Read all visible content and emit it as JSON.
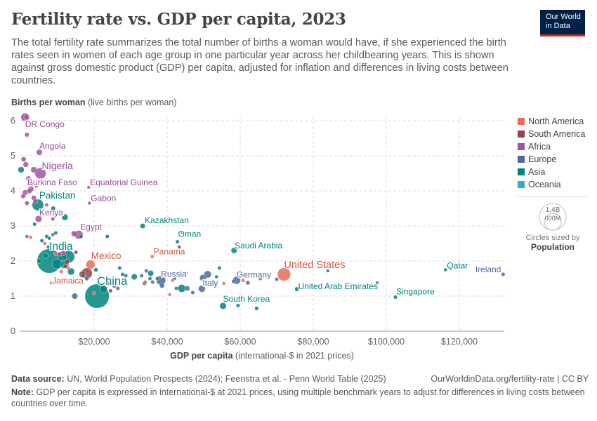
{
  "header": {
    "title": "Fertility rate vs. GDP per capita, 2023",
    "subtitle": "The total fertility rate summarizes the total number of births a woman would have, if she experienced the birth rates seen in women of each age group in one particular year across her childbearing years. This is shown against gross domestic product (GDP) per capita, adjusted for inflation and differences in living costs between countries.",
    "logo": "Our World in Data",
    "logo_line1": "Our World",
    "logo_line2": "in Data"
  },
  "footer": {
    "source_label": "Data source:",
    "source_text": "UN, World Population Prospects (2024); Feenstra et al. - Penn World Table (2025)",
    "url": "OurWorldinData.org/fertility-rate | CC BY",
    "note_label": "Note:",
    "note_text": "GDP per capita is expressed in international-$ at 2021 prices, using multiple benchmark years to adjust for differences in living costs between countries over time."
  },
  "chart_data": {
    "type": "scatter",
    "title": "Fertility rate vs. GDP per capita, 2023",
    "ylabel_bold": "Births per woman",
    "ylabel_rest": "(live births per woman)",
    "xlabel_bold": "GDP per capita",
    "xlabel_rest": "(international-$ in 2021 prices)",
    "xlim": [
      0,
      132500
    ],
    "ylim": [
      0,
      6.2
    ],
    "x_ticks": [
      20000,
      40000,
      60000,
      80000,
      100000,
      120000
    ],
    "x_tick_labels": [
      "$20,000",
      "$40,000",
      "$60,000",
      "$80,000",
      "$100,000",
      "$120,000"
    ],
    "y_ticks": [
      0,
      1,
      2,
      3,
      4,
      5,
      6
    ],
    "y_tick_labels": [
      "0",
      "1",
      "2",
      "3",
      "4",
      "5",
      "6"
    ],
    "grid": true,
    "legend_placement": "right",
    "regions": [
      {
        "name": "North America",
        "color": "#E56E5A",
        "text": "#D0533E"
      },
      {
        "name": "South America",
        "color": "#9A3F4C",
        "text": "#883040"
      },
      {
        "name": "Africa",
        "color": "#A2559C",
        "text": "#9A4B95"
      },
      {
        "name": "Europe",
        "color": "#4C6A9C",
        "text": "#4C6A9C"
      },
      {
        "name": "Asia",
        "color": "#00847E",
        "text": "#00847E"
      },
      {
        "name": "Oceania",
        "color": "#38AABA",
        "text": "#2A98A8"
      }
    ],
    "size_legend": {
      "title": "Circles sized by",
      "variable": "Population",
      "large": "1.4B",
      "small": "600M"
    },
    "points": [
      {
        "label": "DR Congo",
        "gdp": 1100,
        "fertility": 6.1,
        "region": "Africa",
        "population_millions": 105
      },
      {
        "label": "Angola",
        "gdp": 5000,
        "fertility": 5.1,
        "region": "Africa",
        "population_millions": 37
      },
      {
        "label": "Nigeria",
        "gdp": 5300,
        "fertility": 4.5,
        "region": "Africa",
        "population_millions": 228
      },
      {
        "label": "Burkina Faso",
        "gdp": 2300,
        "fertility": 4.0,
        "region": "Africa",
        "population_millions": 23
      },
      {
        "label": "Pakistan",
        "gdp": 4600,
        "fertility": 3.6,
        "region": "Asia",
        "population_millions": 245
      },
      {
        "label": "Kenya",
        "gdp": 4800,
        "fertility": 3.2,
        "region": "Africa",
        "population_millions": 55
      },
      {
        "label": "Equatorial Guinea",
        "gdp": 18500,
        "fertility": 4.1,
        "region": "Africa",
        "population_millions": 2
      },
      {
        "label": "Gabon",
        "gdp": 18700,
        "fertility": 3.65,
        "region": "Africa",
        "population_millions": 2.5
      },
      {
        "label": "Egypt",
        "gdp": 15800,
        "fertility": 2.75,
        "region": "Africa",
        "population_millions": 113
      },
      {
        "label": "Kazakhstan",
        "gdp": 33300,
        "fertility": 3.0,
        "region": "Asia",
        "population_millions": 20
      },
      {
        "label": "Oman",
        "gdp": 42800,
        "fertility": 2.55,
        "region": "Asia",
        "population_millions": 5
      },
      {
        "label": "Panama",
        "gdp": 35900,
        "fertility": 2.13,
        "region": "North America",
        "population_millions": 4.5
      },
      {
        "label": "India",
        "gdp": 7700,
        "fertility": 2.0,
        "region": "Asia",
        "population_millions": 1430
      },
      {
        "label": "Mexico",
        "gdp": 19000,
        "fertility": 1.9,
        "region": "North America",
        "population_millions": 128
      },
      {
        "label": "Jamaica",
        "gdp": 8300,
        "fertility": 1.38,
        "region": "North America",
        "population_millions": 3
      },
      {
        "label": "China",
        "gdp": 20800,
        "fertility": 1.0,
        "region": "Asia",
        "population_millions": 1420
      },
      {
        "label": "Russia",
        "gdp": 38300,
        "fertility": 1.45,
        "region": "Europe",
        "population_millions": 145
      },
      {
        "label": "Italy",
        "gdp": 49500,
        "fertility": 1.21,
        "region": "Europe",
        "population_millions": 59
      },
      {
        "label": "Germany",
        "gdp": 59000,
        "fertility": 1.45,
        "region": "Europe",
        "population_millions": 84
      },
      {
        "label": "Saudi Arabia",
        "gdp": 58300,
        "fertility": 2.3,
        "region": "Asia",
        "population_millions": 33
      },
      {
        "label": "South Korea",
        "gdp": 55300,
        "fertility": 0.72,
        "region": "Asia",
        "population_millions": 52
      },
      {
        "label": "United States",
        "gdp": 72000,
        "fertility": 1.62,
        "region": "North America",
        "population_millions": 340
      },
      {
        "label": "United Arab Emirates",
        "gdp": 75500,
        "fertility": 1.2,
        "region": "Asia",
        "population_millions": 10
      },
      {
        "label": "Qatar",
        "gdp": 116200,
        "fertility": 1.75,
        "region": "Asia",
        "population_millions": 2.7
      },
      {
        "label": "Ireland",
        "gdp": 132000,
        "fertility": 1.62,
        "region": "Europe",
        "population_millions": 5
      },
      {
        "label": "Singapore",
        "gdp": 102500,
        "fertility": 0.97,
        "region": "Asia",
        "population_millions": 6
      },
      {
        "gdp": 1500,
        "fertility": 6.1,
        "region": "Africa",
        "population_millions": 25
      },
      {
        "gdp": 1600,
        "fertility": 5.6,
        "region": "Africa",
        "population_millions": 12
      },
      {
        "gdp": 700,
        "fertility": 4.9,
        "region": "Africa",
        "population_millions": 18
      },
      {
        "gdp": 1300,
        "fertility": 4.75,
        "region": "Africa",
        "population_millions": 25
      },
      {
        "gdp": 3500,
        "fertility": 4.6,
        "region": "Africa",
        "population_millions": 40
      },
      {
        "gdp": 0,
        "fertility": 4.6,
        "region": "Asia",
        "population_millions": 40
      },
      {
        "gdp": 2000,
        "fertility": 4.35,
        "region": "Africa",
        "population_millions": 20
      },
      {
        "gdp": 3000,
        "fertility": 4.2,
        "region": "Africa",
        "population_millions": 15
      },
      {
        "gdp": 4200,
        "fertility": 4.15,
        "region": "Africa",
        "population_millions": 10
      },
      {
        "gdp": 1100,
        "fertility": 3.95,
        "region": "Africa",
        "population_millions": 25
      },
      {
        "gdp": 2700,
        "fertility": 4.05,
        "region": "Africa",
        "population_millions": 30
      },
      {
        "gdp": 600,
        "fertility": 3.85,
        "region": "Africa",
        "population_millions": 15
      },
      {
        "gdp": 3500,
        "fertility": 3.8,
        "region": "Africa",
        "population_millions": 20
      },
      {
        "gdp": 3900,
        "fertility": 3.7,
        "region": "Africa",
        "population_millions": 15
      },
      {
        "gdp": 1600,
        "fertility": 3.65,
        "region": "Africa",
        "population_millions": 12
      },
      {
        "gdp": 7000,
        "fertility": 3.6,
        "region": "Africa",
        "population_millions": 4
      },
      {
        "gdp": 8800,
        "fertility": 3.5,
        "region": "Asia",
        "population_millions": 12
      },
      {
        "gdp": 12000,
        "fertility": 3.25,
        "region": "Asia",
        "population_millions": 45
      },
      {
        "gdp": 8700,
        "fertility": 3.2,
        "region": "Africa",
        "population_millions": 6
      },
      {
        "gdp": 3700,
        "fertility": 3.05,
        "region": "Asia",
        "population_millions": 5
      },
      {
        "gdp": 1600,
        "fertility": 2.7,
        "region": "Africa",
        "population_millions": 4
      },
      {
        "gdp": 2600,
        "fertility": 2.68,
        "region": "North America",
        "population_millions": 4
      },
      {
        "gdp": 5700,
        "fertility": 2.58,
        "region": "Asia",
        "population_millions": 5
      },
      {
        "gdp": 7000,
        "fertility": 2.7,
        "region": "Asia",
        "population_millions": 5
      },
      {
        "gdp": 8700,
        "fertility": 2.75,
        "region": "Africa",
        "population_millions": 5
      },
      {
        "gdp": 9500,
        "fertility": 2.8,
        "region": "Asia",
        "population_millions": 5
      },
      {
        "gdp": 7700,
        "fertility": 2.65,
        "region": "Asia",
        "population_millions": 4
      },
      {
        "gdp": 6500,
        "fertility": 2.5,
        "region": "North America",
        "population_millions": 4
      },
      {
        "gdp": 7500,
        "fertility": 2.4,
        "region": "Asia",
        "population_millions": 4
      },
      {
        "gdp": 14500,
        "fertility": 2.78,
        "region": "Africa",
        "population_millions": 30
      },
      {
        "gdp": 16400,
        "fertility": 2.7,
        "region": "Asia",
        "population_millions": 5
      },
      {
        "gdp": 23600,
        "fertility": 2.7,
        "region": "Asia",
        "population_millions": 5
      },
      {
        "gdp": 6700,
        "fertility": 2.15,
        "region": "Asia",
        "population_millions": 25
      },
      {
        "gdp": 9500,
        "fertility": 2.2,
        "region": "North America",
        "population_millions": 5
      },
      {
        "gdp": 10500,
        "fertility": 2.2,
        "region": "Africa",
        "population_millions": 12
      },
      {
        "gdp": 11500,
        "fertility": 2.22,
        "region": "Africa",
        "population_millions": 25
      },
      {
        "gdp": 13000,
        "fertility": 2.12,
        "region": "Asia",
        "population_millions": 278
      },
      {
        "gdp": 11300,
        "fertility": 2.12,
        "region": "Asia",
        "population_millions": 120
      },
      {
        "gdp": 15000,
        "fertility": 2.25,
        "region": "South America",
        "population_millions": 5
      },
      {
        "gdp": 5000,
        "fertility": 2.0,
        "region": "Asia",
        "population_millions": 15
      },
      {
        "gdp": 9900,
        "fertility": 1.92,
        "region": "Asia",
        "population_millions": 170
      },
      {
        "gdp": 11900,
        "fertility": 1.9,
        "region": "Asia",
        "population_millions": 100
      },
      {
        "gdp": 12600,
        "fertility": 1.98,
        "region": "South America",
        "population_millions": 15
      },
      {
        "gdp": 12100,
        "fertility": 1.85,
        "region": "South America",
        "population_millions": 8
      },
      {
        "gdp": 13000,
        "fertility": 1.8,
        "region": "North America",
        "population_millions": 5
      },
      {
        "gdp": 13700,
        "fertility": 1.7,
        "region": "Asia",
        "population_millions": 60
      },
      {
        "gdp": 11000,
        "fertility": 1.7,
        "region": "North America",
        "population_millions": 5
      },
      {
        "gdp": 16800,
        "fertility": 1.62,
        "region": "South America",
        "population_millions": 52
      },
      {
        "gdp": 18000,
        "fertility": 1.65,
        "region": "South America",
        "population_millions": 210
      },
      {
        "gdp": 17000,
        "fertility": 1.58,
        "region": "Asia",
        "population_millions": 5
      },
      {
        "gdp": 18000,
        "fertility": 1.5,
        "region": "Europe",
        "population_millions": 8
      },
      {
        "gdp": 20500,
        "fertility": 1.75,
        "region": "Asia",
        "population_millions": 8
      },
      {
        "gdp": 14700,
        "fertility": 1.0,
        "region": "Europe",
        "population_millions": 37
      },
      {
        "gdp": 22600,
        "fertility": 1.2,
        "region": "Asia",
        "population_millions": 70
      },
      {
        "gdp": 20000,
        "fertility": 1.08,
        "region": "North America",
        "population_millions": 3
      },
      {
        "gdp": 24000,
        "fertility": 1.35,
        "region": "North America",
        "population_millions": 5
      },
      {
        "gdp": 24500,
        "fertility": 1.15,
        "region": "South America",
        "population_millions": 5
      },
      {
        "gdp": 25500,
        "fertility": 1.28,
        "region": "Africa",
        "population_millions": 5
      },
      {
        "gdp": 26500,
        "fertility": 1.22,
        "region": "Europe",
        "population_millions": 5
      },
      {
        "gdp": 27000,
        "fertility": 1.8,
        "region": "Asia",
        "population_millions": 5
      },
      {
        "gdp": 27800,
        "fertility": 1.62,
        "region": "Asia",
        "population_millions": 5
      },
      {
        "gdp": 28700,
        "fertility": 1.58,
        "region": "Europe",
        "population_millions": 5
      },
      {
        "gdp": 31000,
        "fertility": 1.55,
        "region": "Asia",
        "population_millions": 36
      },
      {
        "gdp": 33000,
        "fertility": 1.58,
        "region": "Europe",
        "population_millions": 5
      },
      {
        "gdp": 33800,
        "fertility": 1.37,
        "region": "Europe",
        "population_millions": 10
      },
      {
        "gdp": 34000,
        "fertility": 1.4,
        "region": "North America",
        "population_millions": 5
      },
      {
        "gdp": 34300,
        "fertility": 1.72,
        "region": "Europe",
        "population_millions": 5
      },
      {
        "gdp": 35500,
        "fertility": 1.65,
        "region": "Asia",
        "population_millions": 34
      },
      {
        "gdp": 35300,
        "fertility": 1.5,
        "region": "Europe",
        "population_millions": 5
      },
      {
        "gdp": 36000,
        "fertility": 1.4,
        "region": "Europe",
        "population_millions": 5
      },
      {
        "gdp": 37300,
        "fertility": 1.5,
        "region": "Europe",
        "population_millions": 5
      },
      {
        "gdp": 38600,
        "fertility": 1.3,
        "region": "Europe",
        "population_millions": 19
      },
      {
        "gdp": 40000,
        "fertility": 1.65,
        "region": "Oceania",
        "population_millions": 3
      },
      {
        "gdp": 41500,
        "fertility": 1.45,
        "region": "North America",
        "population_millions": 4
      },
      {
        "gdp": 42000,
        "fertility": 1.5,
        "region": "Europe",
        "population_millions": 5
      },
      {
        "gdp": 40700,
        "fertility": 1.04,
        "region": "North America",
        "population_millions": 3
      },
      {
        "gdp": 42500,
        "fertility": 1.22,
        "region": "Europe",
        "population_millions": 5
      },
      {
        "gdp": 44000,
        "fertility": 1.22,
        "region": "Asia",
        "population_millions": 86
      },
      {
        "gdp": 45500,
        "fertility": 1.22,
        "region": "Europe",
        "population_millions": 20
      },
      {
        "gdp": 47000,
        "fertility": 1.1,
        "region": "Europe",
        "population_millions": 5
      },
      {
        "gdp": 44100,
        "fertility": 2.82,
        "region": "Asia",
        "population_millions": 4
      },
      {
        "gdp": 43300,
        "fertility": 2.4,
        "region": "South America",
        "population_millions": 3
      },
      {
        "gdp": 45200,
        "fertility": 1.65,
        "region": "Oceania",
        "population_millions": 3
      },
      {
        "gdp": 49800,
        "fertility": 1.52,
        "region": "Europe",
        "population_millions": 48
      },
      {
        "gdp": 51100,
        "fertility": 1.62,
        "region": "Europe",
        "population_millions": 68
      },
      {
        "gdp": 54300,
        "fertility": 1.8,
        "region": "Asia",
        "population_millions": 5
      },
      {
        "gdp": 53500,
        "fertility": 1.55,
        "region": "Asia",
        "population_millions": 3
      },
      {
        "gdp": 55500,
        "fertility": 1.36,
        "region": "North America",
        "population_millions": 3
      },
      {
        "gdp": 58200,
        "fertility": 1.42,
        "region": "Europe",
        "population_millions": 6
      },
      {
        "gdp": 60800,
        "fertility": 1.45,
        "region": "North America",
        "population_millions": 5
      },
      {
        "gdp": 62100,
        "fertility": 1.38,
        "region": "Europe",
        "population_millions": 8
      },
      {
        "gdp": 59400,
        "fertility": 0.73,
        "region": "Asia",
        "population_millions": 5
      },
      {
        "gdp": 64500,
        "fertility": 0.65,
        "region": "Asia",
        "population_millions": 7
      },
      {
        "gdp": 65500,
        "fertility": 1.5,
        "region": "Europe",
        "population_millions": 5
      },
      {
        "gdp": 70000,
        "fertility": 1.48,
        "region": "Europe",
        "population_millions": 5
      },
      {
        "gdp": 84000,
        "fertility": 1.72,
        "region": "Asia",
        "population_millions": 2
      },
      {
        "gdp": 97500,
        "fertility": 1.38,
        "region": "Europe",
        "population_millions": 2
      }
    ]
  }
}
